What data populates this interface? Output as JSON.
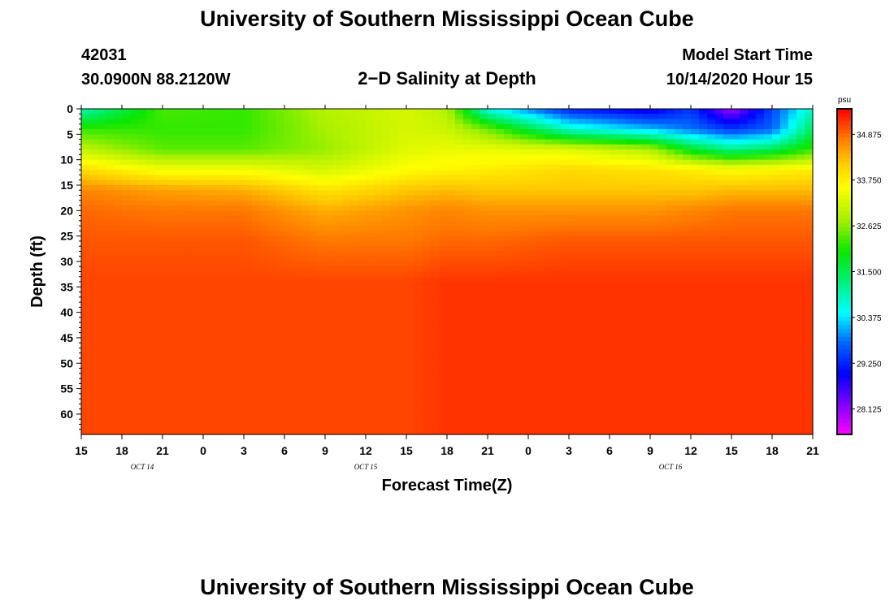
{
  "header": {
    "title": "University of Southern Mississippi Ocean Cube",
    "station_id": "42031",
    "location": "30.0900N 88.2120W",
    "plot_title": "2−D Salinity at Depth",
    "model_start_label": "Model Start Time",
    "model_start_value": "10/14/2020 Hour 15"
  },
  "footer": {
    "title": "University of Southern Mississippi Ocean Cube"
  },
  "chart_data": {
    "type": "heatmap",
    "title": "2−D Salinity at Depth",
    "xlabel": "Forecast Time(Z)",
    "ylabel": "Depth (ft)",
    "x_tick_labels": [
      "15",
      "18",
      "21",
      "0",
      "3",
      "6",
      "9",
      "12",
      "15",
      "18",
      "21",
      "0",
      "3",
      "6",
      "9",
      "12",
      "15",
      "18",
      "21"
    ],
    "x_date_labels": [
      {
        "label": "OCT 14",
        "tick_index": 1.5
      },
      {
        "label": "OCT 15",
        "tick_index": 7
      },
      {
        "label": "OCT 16",
        "tick_index": 14.5
      }
    ],
    "y_tick_labels": [
      "0",
      "5",
      "10",
      "15",
      "20",
      "25",
      "30",
      "35",
      "40",
      "45",
      "50",
      "55",
      "60"
    ],
    "ylim": [
      0,
      64
    ],
    "colorbar": {
      "unit": "psu",
      "range": [
        27.5,
        35.5
      ],
      "tick_labels": [
        "34.875",
        "33.750",
        "32.625",
        "31.500",
        "30.375",
        "29.250",
        "28.125"
      ],
      "tick_values": [
        34.875,
        33.75,
        32.625,
        31.5,
        30.375,
        29.25,
        28.125
      ]
    },
    "sample_hours": [
      0,
      6,
      12,
      18,
      24,
      27,
      30,
      36,
      42,
      45,
      48,
      51,
      54
    ],
    "sample_depths": [
      0,
      4,
      8,
      12,
      16,
      20,
      26,
      34,
      64
    ],
    "values": [
      [
        30.9,
        32.2,
        33.0,
        34.0,
        34.7,
        34.9,
        35.0,
        35.1,
        35.1
      ],
      [
        32.3,
        32.2,
        32.4,
        33.5,
        34.5,
        34.8,
        35.0,
        35.1,
        35.1
      ],
      [
        32.2,
        32.2,
        32.4,
        33.5,
        34.4,
        34.8,
        35.0,
        35.1,
        35.1
      ],
      [
        32.9,
        32.8,
        32.7,
        33.2,
        33.9,
        34.4,
        34.8,
        35.1,
        35.1
      ],
      [
        33.2,
        33.2,
        33.3,
        33.6,
        34.2,
        34.6,
        34.8,
        35.1,
        35.1
      ],
      [
        32.9,
        33.1,
        33.4,
        33.7,
        34.3,
        34.7,
        34.9,
        35.2,
        35.2
      ],
      [
        30.6,
        32.5,
        33.4,
        33.8,
        34.2,
        34.6,
        34.9,
        35.2,
        35.2
      ],
      [
        29.2,
        30.8,
        33.3,
        34.0,
        34.2,
        34.6,
        35.0,
        35.2,
        35.2
      ],
      [
        28.8,
        30.2,
        32.9,
        33.9,
        34.2,
        34.6,
        35.0,
        35.2,
        35.2
      ],
      [
        29.4,
        29.8,
        31.8,
        33.8,
        34.2,
        34.7,
        35.0,
        35.2,
        35.2
      ],
      [
        28.0,
        29.4,
        31.2,
        33.6,
        34.3,
        34.8,
        35.0,
        35.2,
        35.2
      ],
      [
        29.5,
        29.7,
        31.5,
        33.7,
        34.3,
        34.8,
        35.0,
        35.2,
        35.2
      ],
      [
        30.9,
        31.5,
        32.2,
        33.8,
        34.3,
        34.8,
        35.0,
        35.2,
        35.2
      ]
    ]
  }
}
